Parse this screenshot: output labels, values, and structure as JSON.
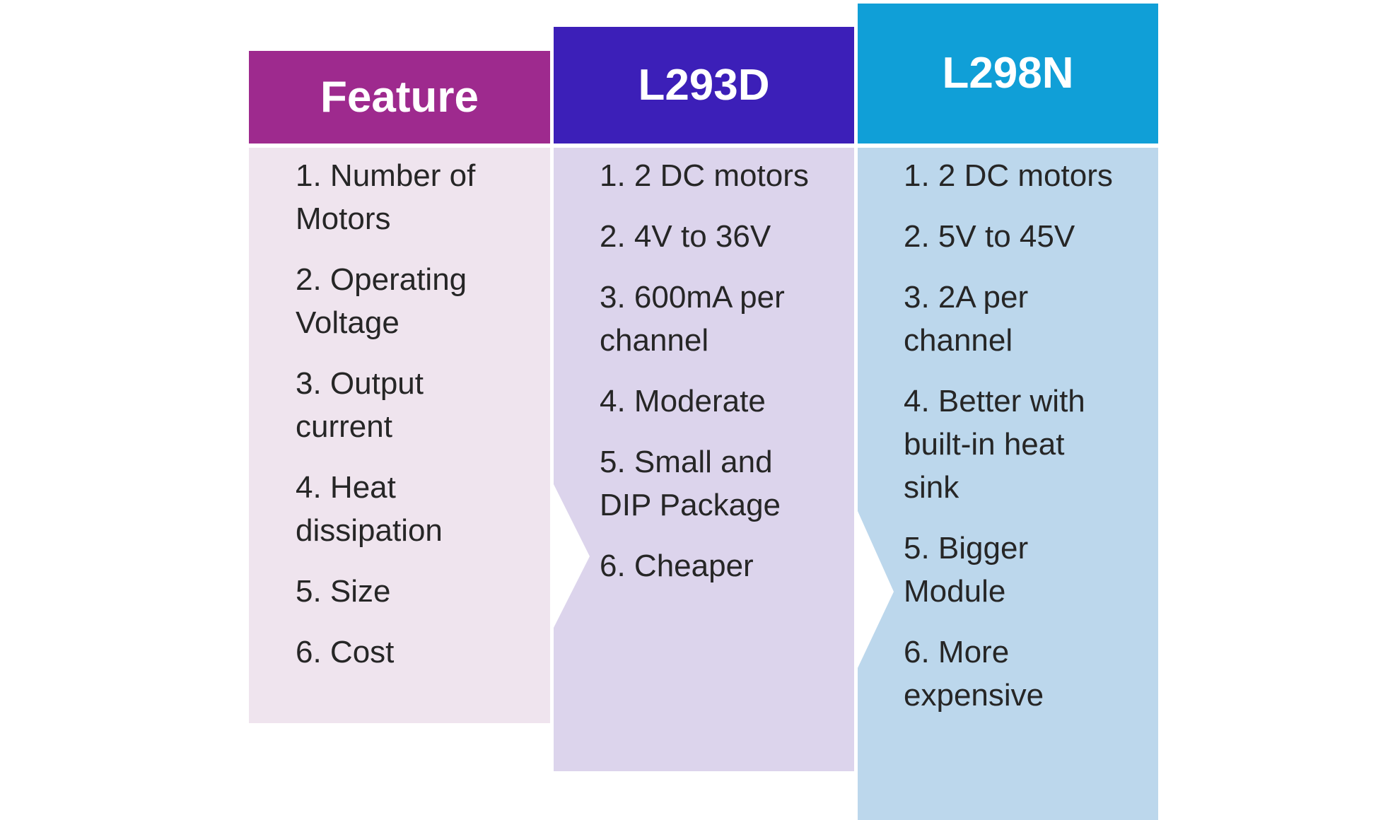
{
  "columns": [
    {
      "header": "Feature",
      "items": [
        "1. Number of Motors",
        "2. Operating Voltage",
        "3. Output current",
        "4. Heat dissipation",
        "5. Size",
        "6. Cost"
      ]
    },
    {
      "header": "L293D",
      "items": [
        "1. 2 DC motors",
        "2. 4V to 36V",
        "3. 600mA per channel",
        "4. Moderate",
        "5. Small and DIP Package",
        "6. Cheaper"
      ]
    },
    {
      "header": "L298N",
      "items": [
        "1. 2 DC motors",
        "2. 5V to 45V",
        "3. 2A per channel",
        "4. Better with built-in heat sink",
        "5. Bigger Module",
        "6. More expensive"
      ]
    }
  ]
}
